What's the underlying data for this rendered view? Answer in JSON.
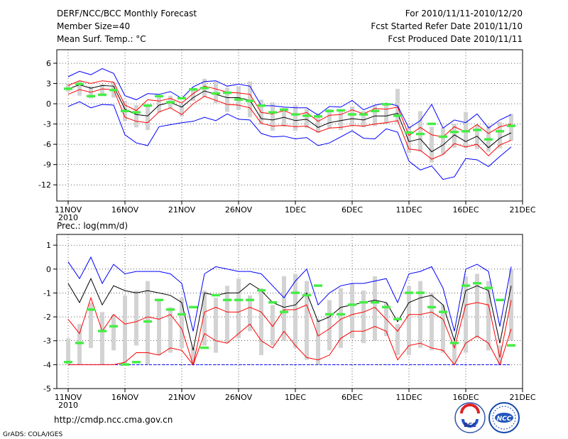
{
  "header": {
    "left": [
      "DERF/NCC/BCC Monthly Forecast",
      "Member Size=40",
      "Mean Surf. Temp.: °C"
    ],
    "right": [
      "For 2010/11/11-2010/12/20",
      "Fcst Started Refer Date 2010/11/10",
      "Fcst Produced Date 2010/11/11"
    ]
  },
  "prec_label": "Prec.: log(mm/d)",
  "footer": {
    "url": "http://cmdp.ncc.cma.gov.cn",
    "credit": "GrADS: COLA/IGES"
  },
  "logos": {
    "bcc": "BCC",
    "ncc": "NCC"
  },
  "colors": {
    "mean": "#000000",
    "spread": "#ff0000",
    "envelope": "#0000ff",
    "bar": "#d3d3d3",
    "obs": "#44ee44"
  },
  "chart_data": [
    {
      "type": "line",
      "title": "Mean Surf. Temp.: °C",
      "x_ticks": [
        "11NOV",
        "16NOV",
        "21NOV",
        "26NOV",
        "1DEC",
        "6DEC",
        "11DEC",
        "16DEC",
        "21DEC"
      ],
      "x_tick_day": [
        1,
        6,
        11,
        16,
        21,
        26,
        31,
        36,
        41
      ],
      "x_sub": "2010",
      "y_ticks": [
        "6",
        "3",
        "0",
        "-3",
        "-6",
        "-9",
        "-12"
      ],
      "y_tick_values": [
        6,
        3,
        0,
        -3,
        -6,
        -9,
        -12
      ],
      "ylim": [
        -14.4,
        8
      ],
      "day": [
        1,
        2,
        3,
        4,
        5,
        6,
        7,
        8,
        9,
        10,
        11,
        12,
        13,
        14,
        15,
        16,
        17,
        18,
        19,
        20,
        21,
        22,
        23,
        24,
        25,
        26,
        27,
        28,
        29,
        30,
        31,
        32,
        33,
        34,
        35,
        36,
        37,
        38,
        39,
        40
      ],
      "series": [
        {
          "name": "max",
          "values": [
            4,
            4.8,
            4.3,
            5.2,
            4.5,
            1.2,
            0.6,
            1.5,
            1.4,
            1.8,
            0.8,
            2.5,
            3.3,
            3.4,
            2.6,
            2.9,
            2.6,
            -0.3,
            -0.3,
            -0.5,
            -0.6,
            -0.6,
            -1.7,
            -0.4,
            -0.5,
            0.5,
            -0.9,
            -0.2,
            0.1,
            -0.3,
            -3.6,
            -2.5,
            -0.1,
            -3.6,
            -2.4,
            -2.8,
            -1.5,
            -3.6,
            -2.4,
            -1.6
          ]
        },
        {
          "name": "spread_upper",
          "values": [
            2.7,
            3.4,
            3,
            3.4,
            3.2,
            -0.2,
            -1,
            0.6,
            0.4,
            0.8,
            0.1,
            1.5,
            2.6,
            2.2,
            1.7,
            1.6,
            1.4,
            -1.3,
            -1.5,
            -1,
            -1.7,
            -1.3,
            -2.6,
            -1.7,
            -1.6,
            -0.9,
            -1.5,
            -0.7,
            -0.8,
            -0.5,
            -4.7,
            -3.5,
            -4.6,
            -4.9,
            -3.4,
            -4.2,
            -3.1,
            -4.4,
            -3.4,
            -3
          ]
        },
        {
          "name": "mean",
          "values": [
            2.2,
            2.8,
            2.3,
            2.7,
            2.6,
            -0.8,
            -1.6,
            -1.8,
            -0.2,
            0.2,
            -0.5,
            0.9,
            1.9,
            1.4,
            0.9,
            0.9,
            0.5,
            -2.2,
            -2.4,
            -2,
            -2.5,
            -2.3,
            -3.5,
            -2.8,
            -2.5,
            -2.2,
            -2.4,
            -1.8,
            -1.8,
            -1.4,
            -5.6,
            -5.2,
            -7.1,
            -6.1,
            -4.6,
            -5.6,
            -4.8,
            -6.5,
            -5.1,
            -4.3
          ]
        },
        {
          "name": "spread_lower",
          "values": [
            1.4,
            2.1,
            1.7,
            2.2,
            2.1,
            -2,
            -2.6,
            -2.8,
            -1.2,
            -0.6,
            -1.6,
            0,
            1.1,
            0.5,
            -0.1,
            -0.2,
            -0.6,
            -2.9,
            -3.3,
            -3.2,
            -3.4,
            -3.3,
            -4.2,
            -3.6,
            -3.5,
            -3.2,
            -3.3,
            -3,
            -2.8,
            -2.5,
            -6.7,
            -6.9,
            -8.2,
            -7.5,
            -5.9,
            -6.4,
            -6,
            -7.7,
            -6.1,
            -5.4
          ]
        },
        {
          "name": "min",
          "values": [
            -0.4,
            0.3,
            -0.6,
            -0.1,
            -0.2,
            -4.6,
            -5.8,
            -6.2,
            -3.4,
            -3.1,
            -2.8,
            -2.6,
            -2,
            -2.5,
            -1.5,
            -2.3,
            -2.4,
            -4.4,
            -4.9,
            -4.8,
            -5.2,
            -5,
            -6.2,
            -5.8,
            -4.9,
            -4,
            -5.1,
            -5.2,
            -3.7,
            -4.2,
            -8.5,
            -9.8,
            -9.2,
            -11.2,
            -10.8,
            -8.1,
            -8.3,
            -9.3,
            -7.8,
            -6.4
          ]
        },
        {
          "name": "bar_top",
          "values": [
            3,
            3.4,
            2.6,
            2.9,
            3.2,
            0.4,
            -0.2,
            -0.3,
            1.1,
            1.2,
            -0.1,
            2.4,
            3.7,
            3.3,
            2.4,
            2.6,
            3.3,
            0.6,
            0.2,
            -0.6,
            -0.2,
            -0.8,
            -1.4,
            -0.8,
            -1.1,
            -0.4,
            -1.1,
            -0.3,
            0.1,
            2.2,
            -3.3,
            -1.1,
            -3.4,
            -3.5,
            -3,
            -1.2,
            -3.1,
            -3.2,
            -2.7,
            -1.5
          ]
        },
        {
          "name": "bar_bottom",
          "values": [
            1.8,
            1.2,
            0.8,
            1.3,
            0.9,
            -2.6,
            -3.5,
            -3.9,
            -1.3,
            -0.6,
            -1.9,
            0.4,
            1,
            0.1,
            -1.2,
            -0.9,
            -2,
            -3.1,
            -4,
            -3.4,
            -4,
            -3.6,
            -4.3,
            -3.6,
            -3.9,
            -3.3,
            -3.5,
            -3.3,
            -3,
            -2.8,
            -7.3,
            -7.1,
            -8.7,
            -7.5,
            -6.5,
            -6.6,
            -6.7,
            -7.1,
            -6.6,
            -5.5
          ]
        },
        {
          "name": "obs",
          "values": [
            2.2,
            2.9,
            1.1,
            1.3,
            2,
            -1.1,
            -1.3,
            -0.3,
            1.1,
            0.2,
            0.8,
            2.1,
            2.3,
            1.5,
            1.6,
            0.6,
            0.4,
            -0.3,
            -1.3,
            -0.9,
            -1.6,
            -1.8,
            -1.9,
            -1.1,
            -1,
            -1.6,
            -1.6,
            -1.1,
            -0.1,
            -1.8,
            -4.3,
            -4.5,
            -3,
            -4.9,
            -4.2,
            -4.1,
            -3.9,
            -5.3,
            -4.1,
            -3.3
          ]
        }
      ]
    },
    {
      "type": "line",
      "title": "Prec.: log(mm/d)",
      "x_ticks": [
        "11NOV",
        "16NOV",
        "21NOV",
        "26NOV",
        "1DEC",
        "6DEC",
        "11DEC",
        "16DEC",
        "21DEC"
      ],
      "x_tick_day": [
        1,
        6,
        11,
        16,
        21,
        26,
        31,
        36,
        41
      ],
      "x_sub": "2010",
      "y_ticks": [
        "1",
        "0",
        "-1",
        "-2",
        "-3",
        "-4",
        "-5"
      ],
      "y_tick_values": [
        1,
        0,
        -1,
        -2,
        -3,
        -4,
        -5
      ],
      "ylim": [
        -5,
        1.45
      ],
      "day": [
        1,
        2,
        3,
        4,
        5,
        6,
        7,
        8,
        9,
        10,
        11,
        12,
        13,
        14,
        15,
        16,
        17,
        18,
        19,
        20,
        21,
        22,
        23,
        24,
        25,
        26,
        27,
        28,
        29,
        30,
        31,
        32,
        33,
        34,
        35,
        36,
        37,
        38,
        39,
        40
      ],
      "series": [
        {
          "name": "max",
          "values": [
            0.3,
            -0.4,
            0.5,
            -0.6,
            0.2,
            -0.2,
            -0.1,
            -0.1,
            -0.1,
            -0.2,
            -0.6,
            -2.6,
            -0.2,
            0.1,
            0,
            -0.1,
            -0.1,
            -0.2,
            -0.7,
            -1.2,
            -0.5,
            0,
            -1.5,
            -1,
            -0.7,
            -0.6,
            -0.6,
            -0.5,
            -0.4,
            -1.4,
            -0.2,
            -0.1,
            0.1,
            -0.8,
            -2.6,
            0,
            0.2,
            -0.1,
            -2.4,
            0.1
          ]
        },
        {
          "name": "mean",
          "values": [
            -0.6,
            -1.4,
            -0.4,
            -1.5,
            -0.7,
            -0.9,
            -1,
            -0.9,
            -1,
            -1.1,
            -1.4,
            -3.4,
            -1,
            -1.1,
            -1,
            -1,
            -0.6,
            -0.9,
            -1.4,
            -1.6,
            -1.5,
            -1,
            -2.2,
            -2,
            -1.6,
            -1.5,
            -1.4,
            -1.3,
            -1.4,
            -2.2,
            -1.4,
            -1.2,
            -1.1,
            -1.5,
            -3,
            -0.9,
            -0.7,
            -0.9,
            -3.1,
            -0.7
          ]
        },
        {
          "name": "upper",
          "values": [
            -2.1,
            -2.7,
            -1.2,
            -2.6,
            -1.9,
            -2.3,
            -2.2,
            -2,
            -2.1,
            -1.9,
            -2.5,
            -4,
            -1.8,
            -1.6,
            -1.8,
            -1.8,
            -1.6,
            -1.8,
            -2.4,
            -1.7,
            -1.7,
            -1.5,
            -2.8,
            -2.5,
            -2.1,
            -1.9,
            -1.8,
            -1.6,
            -2.1,
            -2.6,
            -1.9,
            -1.9,
            -1.8,
            -2.1,
            -3.3,
            -1.5,
            -1.4,
            -1.5,
            -3.7,
            -1.3
          ]
        },
        {
          "name": "lower",
          "values": [
            -4,
            -4,
            -4,
            -4,
            -4,
            -3.9,
            -3.5,
            -3.5,
            -3.6,
            -3.3,
            -3.4,
            -4,
            -2.7,
            -3,
            -3.1,
            -2.7,
            -2.3,
            -3,
            -3.3,
            -2.6,
            -3.2,
            -3.7,
            -3.8,
            -3.6,
            -2.9,
            -2.6,
            -2.6,
            -2.4,
            -2.6,
            -3.8,
            -3.2,
            -3.1,
            -3.3,
            -3.4,
            -4,
            -3.1,
            -2.8,
            -3.1,
            -4,
            -2.5
          ]
        },
        {
          "name": "floor",
          "values": [
            -4,
            -4,
            -4,
            -4,
            -4,
            -4,
            -4,
            -4,
            -4,
            -4,
            -4,
            -4,
            -4,
            -4,
            -4,
            -4,
            -4,
            -4,
            -4,
            -4,
            -4,
            -4,
            -4,
            -4,
            -4,
            -4,
            -4,
            -4,
            -4,
            -4,
            -4,
            -4,
            -4,
            -4,
            -4,
            -4,
            -4,
            -4,
            -4,
            -4
          ]
        },
        {
          "name": "bar_top",
          "values": [
            -2.9,
            -2.3,
            -1.4,
            -1.8,
            -1.9,
            -1.1,
            -0.9,
            -0.5,
            -1.3,
            -1.6,
            -1.2,
            -3.3,
            -0.9,
            -1.2,
            -0.7,
            -0.4,
            -1.1,
            -0.8,
            -1.5,
            -0.3,
            -0.2,
            -0.5,
            -2.1,
            -1.3,
            -0.8,
            -0.6,
            -0.9,
            -0.3,
            -1.4,
            -2.3,
            -0.7,
            -0.5,
            -1,
            -1.5,
            -3.1,
            -0.3,
            -0.2,
            -0.5,
            -3.2,
            0
          ]
        },
        {
          "name": "bar_bottom",
          "values": [
            -4,
            -4,
            -3.3,
            -4,
            -3.4,
            -4,
            -3.2,
            -4,
            -3.6,
            -3.5,
            -3.3,
            -4,
            -3.2,
            -3.5,
            -3.1,
            -2.9,
            -2.6,
            -3.6,
            -3.2,
            -3,
            -3.3,
            -3.8,
            -4,
            -3.4,
            -3.3,
            -2.9,
            -3.1,
            -3,
            -2.8,
            -3.6,
            -3.6,
            -3.3,
            -3.4,
            -3.5,
            -4,
            -3.5,
            -2.9,
            -3.4,
            -4,
            -3
          ]
        },
        {
          "name": "obs",
          "values": [
            -3.9,
            -3.1,
            -1.7,
            -2.6,
            -2.4,
            -4,
            -3.9,
            -2.2,
            -1.3,
            -1.7,
            -1.9,
            -1.6,
            -3.3,
            -1.1,
            -1.3,
            -1.3,
            -1.3,
            -0.9,
            -1.4,
            -1.8,
            -1,
            -1.1,
            -0.7,
            -1.9,
            -1.9,
            -1.5,
            -1.4,
            -1.4,
            -1.6,
            -2.1,
            -1,
            -1,
            -1.6,
            -1.8,
            -3.1,
            -0.7,
            -0.6,
            -0.8,
            -1.3,
            -3.2
          ]
        }
      ]
    }
  ]
}
